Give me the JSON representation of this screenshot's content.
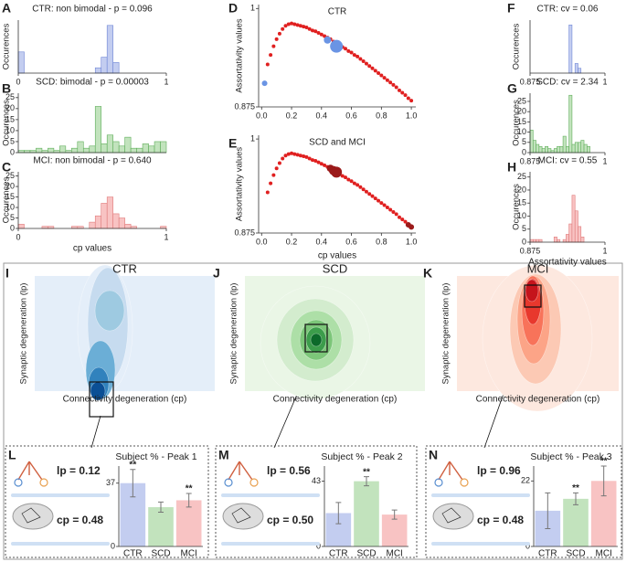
{
  "chart_data": [
    {
      "type": "histogram",
      "panel": "A",
      "title": "CTR: non bimodal - p = 0.096",
      "ylabel": "Occurences",
      "color": "#c3cdf0",
      "edge": "#6f86d6",
      "bins": [
        0,
        0.04,
        0.08,
        0.12,
        0.16,
        0.2,
        0.24,
        0.28,
        0.32,
        0.36,
        0.4,
        0.44,
        0.48,
        0.52,
        0.56,
        0.6,
        0.64,
        0.68,
        0.72,
        0.76,
        0.8,
        0.84,
        0.88,
        0.92,
        0.96,
        1
      ],
      "counts": [
        4,
        0,
        0,
        0,
        0,
        0,
        0,
        0,
        0,
        0,
        0,
        0,
        0,
        1,
        3,
        9,
        2,
        0,
        0,
        0,
        0,
        0,
        0,
        0,
        0
      ],
      "xlim": [
        0,
        1
      ],
      "xticks": [
        0,
        1
      ],
      "ylim": [
        0,
        10
      ]
    },
    {
      "type": "histogram",
      "panel": "B",
      "title": "SCD: bimodal - p = 0.00003",
      "ylabel": "Occurences",
      "color": "#c2e3bd",
      "edge": "#5fae5a",
      "bins": [
        0,
        0.04,
        0.08,
        0.12,
        0.16,
        0.2,
        0.24,
        0.28,
        0.32,
        0.36,
        0.4,
        0.44,
        0.48,
        0.52,
        0.56,
        0.6,
        0.64,
        0.68,
        0.72,
        0.76,
        0.8,
        0.84,
        0.88,
        0.92,
        0.96,
        1
      ],
      "counts": [
        1,
        1,
        1,
        2,
        1,
        2,
        1,
        3,
        1,
        2,
        5,
        2,
        3,
        21,
        4,
        8,
        5,
        3,
        7,
        2,
        2,
        4,
        3,
        5,
        5
      ],
      "xlim": [
        0,
        1
      ],
      "ylim": [
        0,
        27
      ],
      "yticks": [
        0,
        5,
        10,
        15,
        20,
        25
      ]
    },
    {
      "type": "histogram",
      "panel": "C",
      "title": "MCI: non bimodal - p = 0.640",
      "ylabel": "Occurences",
      "xlabel": "cp values",
      "color": "#f8c3c3",
      "edge": "#e07b7b",
      "bins": [
        0,
        0.04,
        0.08,
        0.12,
        0.16,
        0.2,
        0.24,
        0.28,
        0.32,
        0.36,
        0.4,
        0.44,
        0.48,
        0.52,
        0.56,
        0.6,
        0.64,
        0.68,
        0.72,
        0.76,
        0.8,
        0.84,
        0.88,
        0.92,
        0.96,
        1
      ],
      "counts": [
        2,
        0,
        0,
        0,
        1,
        1,
        0,
        0,
        0,
        1,
        1,
        0,
        3,
        6,
        12,
        15,
        7,
        5,
        2,
        1,
        0,
        0,
        0,
        0,
        1
      ],
      "xlim": [
        0,
        1
      ],
      "xticks": [
        0,
        1
      ],
      "ylim": [
        0,
        27
      ],
      "yticks": [
        0,
        5,
        10,
        15,
        20,
        25
      ]
    },
    {
      "type": "scatter",
      "panel": "D",
      "title": "CTR",
      "ylabel": "Assortativity values",
      "xlim": [
        -0.02,
        1.03
      ],
      "xticks": [
        {
          "value": 0,
          "label": "0.0"
        },
        0.2,
        0.4,
        0.6,
        0.8,
        {
          "value": 1,
          "label": "1.0"
        }
      ],
      "ylim": [
        0.875,
        1.005
      ],
      "yticks": [
        0.875,
        1
      ],
      "series": [
        {
          "color": "#e02020",
          "x": [
            0.04,
            0.06,
            0.08,
            0.1,
            0.12,
            0.14,
            0.16,
            0.18,
            0.2,
            0.22,
            0.24,
            0.26,
            0.28,
            0.3,
            0.32,
            0.34,
            0.36,
            0.38,
            0.4,
            0.42,
            0.44,
            0.46,
            0.48,
            0.5,
            0.52,
            0.54,
            0.56,
            0.58,
            0.6,
            0.62,
            0.64,
            0.66,
            0.68,
            0.7,
            0.72,
            0.74,
            0.76,
            0.78,
            0.8,
            0.82,
            0.84,
            0.86,
            0.88,
            0.9,
            0.92,
            0.94,
            0.96,
            0.98,
            1
          ],
          "values": [
            0.929,
            0.941,
            0.952,
            0.961,
            0.968,
            0.974,
            0.978,
            0.98,
            0.981,
            0.98,
            0.979,
            0.978,
            0.977,
            0.976,
            0.974,
            0.972,
            0.971,
            0.969,
            0.967,
            0.965,
            0.963,
            0.961,
            0.958,
            0.956,
            0.954,
            0.951,
            0.949,
            0.946,
            0.944,
            0.941,
            0.939,
            0.936,
            0.933,
            0.93,
            0.927,
            0.924,
            0.921,
            0.918,
            0.915,
            0.912,
            0.909,
            0.906,
            0.903,
            0.9,
            0.896,
            0.893,
            0.89,
            0.886,
            0.883
          ]
        },
        {
          "color": "#6a94e4",
          "x": [
            0.02,
            0.44,
            0.5
          ],
          "values": [
            0.905,
            0.96,
            0.952
          ],
          "sizes": [
            3,
            4,
            7
          ]
        }
      ]
    },
    {
      "type": "scatter",
      "panel": "E",
      "title": "SCD and MCI",
      "ylabel": "Assortativity values",
      "xlabel": "cp values",
      "xlim": [
        -0.02,
        1.03
      ],
      "xticks": [
        {
          "value": 0,
          "label": "0.0"
        },
        0.2,
        0.4,
        0.6,
        0.8,
        {
          "value": 1,
          "label": "1.0"
        }
      ],
      "ylim": [
        0.875,
        1.005
      ],
      "yticks": [
        0.875,
        1
      ],
      "series": [
        {
          "color": "#e02020",
          "x": [
            0.04,
            0.06,
            0.08,
            0.1,
            0.12,
            0.14,
            0.16,
            0.18,
            0.2,
            0.22,
            0.24,
            0.26,
            0.28,
            0.3,
            0.32,
            0.34,
            0.36,
            0.38,
            0.4,
            0.42,
            0.44,
            0.46,
            0.48,
            0.5,
            0.52,
            0.54,
            0.56,
            0.58,
            0.6,
            0.62,
            0.64,
            0.66,
            0.68,
            0.7,
            0.72,
            0.74,
            0.76,
            0.78,
            0.8,
            0.82,
            0.84,
            0.86,
            0.88,
            0.9,
            0.92,
            0.94,
            0.96,
            0.98,
            1
          ],
          "values": [
            0.929,
            0.941,
            0.952,
            0.961,
            0.968,
            0.974,
            0.978,
            0.98,
            0.981,
            0.98,
            0.979,
            0.978,
            0.977,
            0.976,
            0.974,
            0.972,
            0.971,
            0.969,
            0.967,
            0.965,
            0.963,
            0.961,
            0.958,
            0.956,
            0.954,
            0.951,
            0.949,
            0.946,
            0.944,
            0.941,
            0.939,
            0.936,
            0.933,
            0.93,
            0.927,
            0.924,
            0.921,
            0.918,
            0.915,
            0.912,
            0.909,
            0.906,
            0.903,
            0.9,
            0.896,
            0.893,
            0.89,
            0.886,
            0.883
          ]
        },
        {
          "color": "#9b1a1a",
          "x": [
            0.46,
            0.48,
            0.5,
            0.98,
            1
          ],
          "values": [
            0.961,
            0.958,
            0.956,
            0.886,
            0.883
          ],
          "sizes": [
            4,
            5,
            6,
            3,
            3
          ]
        }
      ]
    },
    {
      "type": "histogram",
      "panel": "F",
      "title": "CTR: cv = 0.06",
      "ylabel": "Occurences",
      "color": "#c3cdf0",
      "edge": "#6f86d6",
      "bins": [
        0.875,
        0.88,
        0.885,
        0.89,
        0.895,
        0.9,
        0.905,
        0.91,
        0.915,
        0.92,
        0.925,
        0.93,
        0.935,
        0.94,
        0.945,
        0.95,
        0.955,
        0.96,
        0.965,
        0.97,
        0.975,
        0.98,
        0.985,
        0.99,
        0.995,
        1
      ],
      "counts": [
        0,
        0,
        0,
        0,
        0,
        0,
        0,
        0,
        0,
        0,
        0,
        0,
        0,
        10,
        0,
        2,
        1,
        0,
        0,
        0,
        0,
        0,
        0,
        0,
        0
      ],
      "xlim": [
        0.875,
        1
      ],
      "xticks": [
        0.875,
        1
      ],
      "ylim": [
        0,
        11
      ]
    },
    {
      "type": "histogram",
      "panel": "G",
      "title": "SCD: cv = 2.34",
      "ylabel": "Occurences",
      "color": "#c2e3bd",
      "edge": "#5fae5a",
      "bins": [
        0.875,
        0.88,
        0.885,
        0.89,
        0.895,
        0.9,
        0.905,
        0.91,
        0.915,
        0.92,
        0.925,
        0.93,
        0.935,
        0.94,
        0.945,
        0.95,
        0.955,
        0.96,
        0.965,
        0.97,
        0.975,
        0.98,
        0.985,
        0.99,
        0.995,
        1
      ],
      "counts": [
        11,
        6,
        4,
        3,
        2,
        3,
        2,
        1,
        2,
        3,
        3,
        8,
        3,
        28,
        4,
        5,
        5,
        6,
        4,
        3,
        0,
        0,
        0,
        0,
        0
      ],
      "xlim": [
        0.875,
        1
      ],
      "xticks": [
        0.875,
        1
      ],
      "ylim": [
        0,
        29
      ],
      "yticks": [
        0,
        5,
        10,
        15,
        20,
        25
      ]
    },
    {
      "type": "histogram",
      "panel": "H",
      "title": "MCI: cv = 0.55",
      "ylabel": "Occurences",
      "xlabel": "Assortativity values",
      "color": "#f8c3c3",
      "edge": "#e07b7b",
      "bins": [
        0.875,
        0.88,
        0.885,
        0.89,
        0.895,
        0.9,
        0.905,
        0.91,
        0.915,
        0.92,
        0.925,
        0.93,
        0.935,
        0.94,
        0.945,
        0.95,
        0.955,
        0.96,
        0.965,
        0.97,
        0.975,
        0.98,
        0.985,
        0.99,
        0.995,
        1
      ],
      "counts": [
        1,
        1,
        1,
        1,
        0,
        0,
        0,
        0,
        2,
        1,
        0,
        1,
        3,
        7,
        18,
        12,
        6,
        2,
        0,
        0,
        0,
        0,
        0,
        0,
        0
      ],
      "xlim": [
        0.875,
        1
      ],
      "xticks": [
        0.875,
        1
      ],
      "ylim": [
        0,
        27
      ],
      "yticks": [
        0,
        5,
        10,
        15,
        20,
        25
      ]
    },
    {
      "type": "contour",
      "panel": "I",
      "title": "CTR",
      "ylabel": "Synaptic degeneration (lp)",
      "xlabel": "Connectivity degeneration (cp)",
      "colors": [
        "#e4eef9",
        "#c6dbef",
        "#9ecae1",
        "#6baed6",
        "#3182bd",
        "#0b4f95"
      ]
    },
    {
      "type": "contour",
      "panel": "J",
      "title": "SCD",
      "ylabel": "Synaptic degeneration (lp)",
      "xlabel": "Connectivity degeneration (cp)",
      "colors": [
        "#eaf6e6",
        "#d3ecce",
        "#addfa7",
        "#7cc679",
        "#3c9d4b",
        "#0c6a2a"
      ]
    },
    {
      "type": "contour",
      "panel": "K",
      "title": "MCI",
      "ylabel": "Synaptic degeneration (lp)",
      "xlabel": "Connectivity degeneration (cp)",
      "colors": [
        "#fde8df",
        "#fcc9b4",
        "#fca487",
        "#f8735a",
        "#e8382d",
        "#c5141c"
      ]
    },
    {
      "type": "bar",
      "panel": "L",
      "title": "Subject % - Peak 1",
      "params": [
        "lp = 0.12",
        "cp = 0.48"
      ],
      "categories": [
        "CTR",
        "SCD",
        "MCI"
      ],
      "values": [
        37,
        23,
        27
      ],
      "errors": [
        8,
        3,
        4
      ],
      "significance": [
        "**",
        null,
        "**"
      ],
      "colors": [
        "#c3cdf0",
        "#c2e3bd",
        "#f8c3c3"
      ],
      "ylim": [
        0,
        47
      ],
      "yticks": [
        0,
        37
      ]
    },
    {
      "type": "bar",
      "panel": "M",
      "title": "Subject % - Peak 2",
      "params": [
        "lp = 0.56",
        "cp = 0.50"
      ],
      "categories": [
        "CTR",
        "SCD",
        "MCI"
      ],
      "values": [
        22,
        43,
        21
      ],
      "errors": [
        7,
        3,
        3
      ],
      "significance": [
        null,
        "**",
        null
      ],
      "colors": [
        "#c3cdf0",
        "#c2e3bd",
        "#f8c3c3"
      ],
      "ylim": [
        0,
        53
      ],
      "yticks": [
        0,
        43
      ]
    },
    {
      "type": "bar",
      "panel": "N",
      "title": "Subject % - Peak 3",
      "params": [
        "lp = 0.96",
        "cp = 0.48"
      ],
      "categories": [
        "CTR",
        "SCD",
        "MCI"
      ],
      "values": [
        12,
        16,
        22
      ],
      "errors": [
        6,
        2,
        5
      ],
      "significance": [
        null,
        "**",
        "**"
      ],
      "colors": [
        "#c3cdf0",
        "#c2e3bd",
        "#f8c3c3"
      ],
      "ylim": [
        0,
        27
      ],
      "yticks": [
        0,
        22
      ]
    }
  ]
}
